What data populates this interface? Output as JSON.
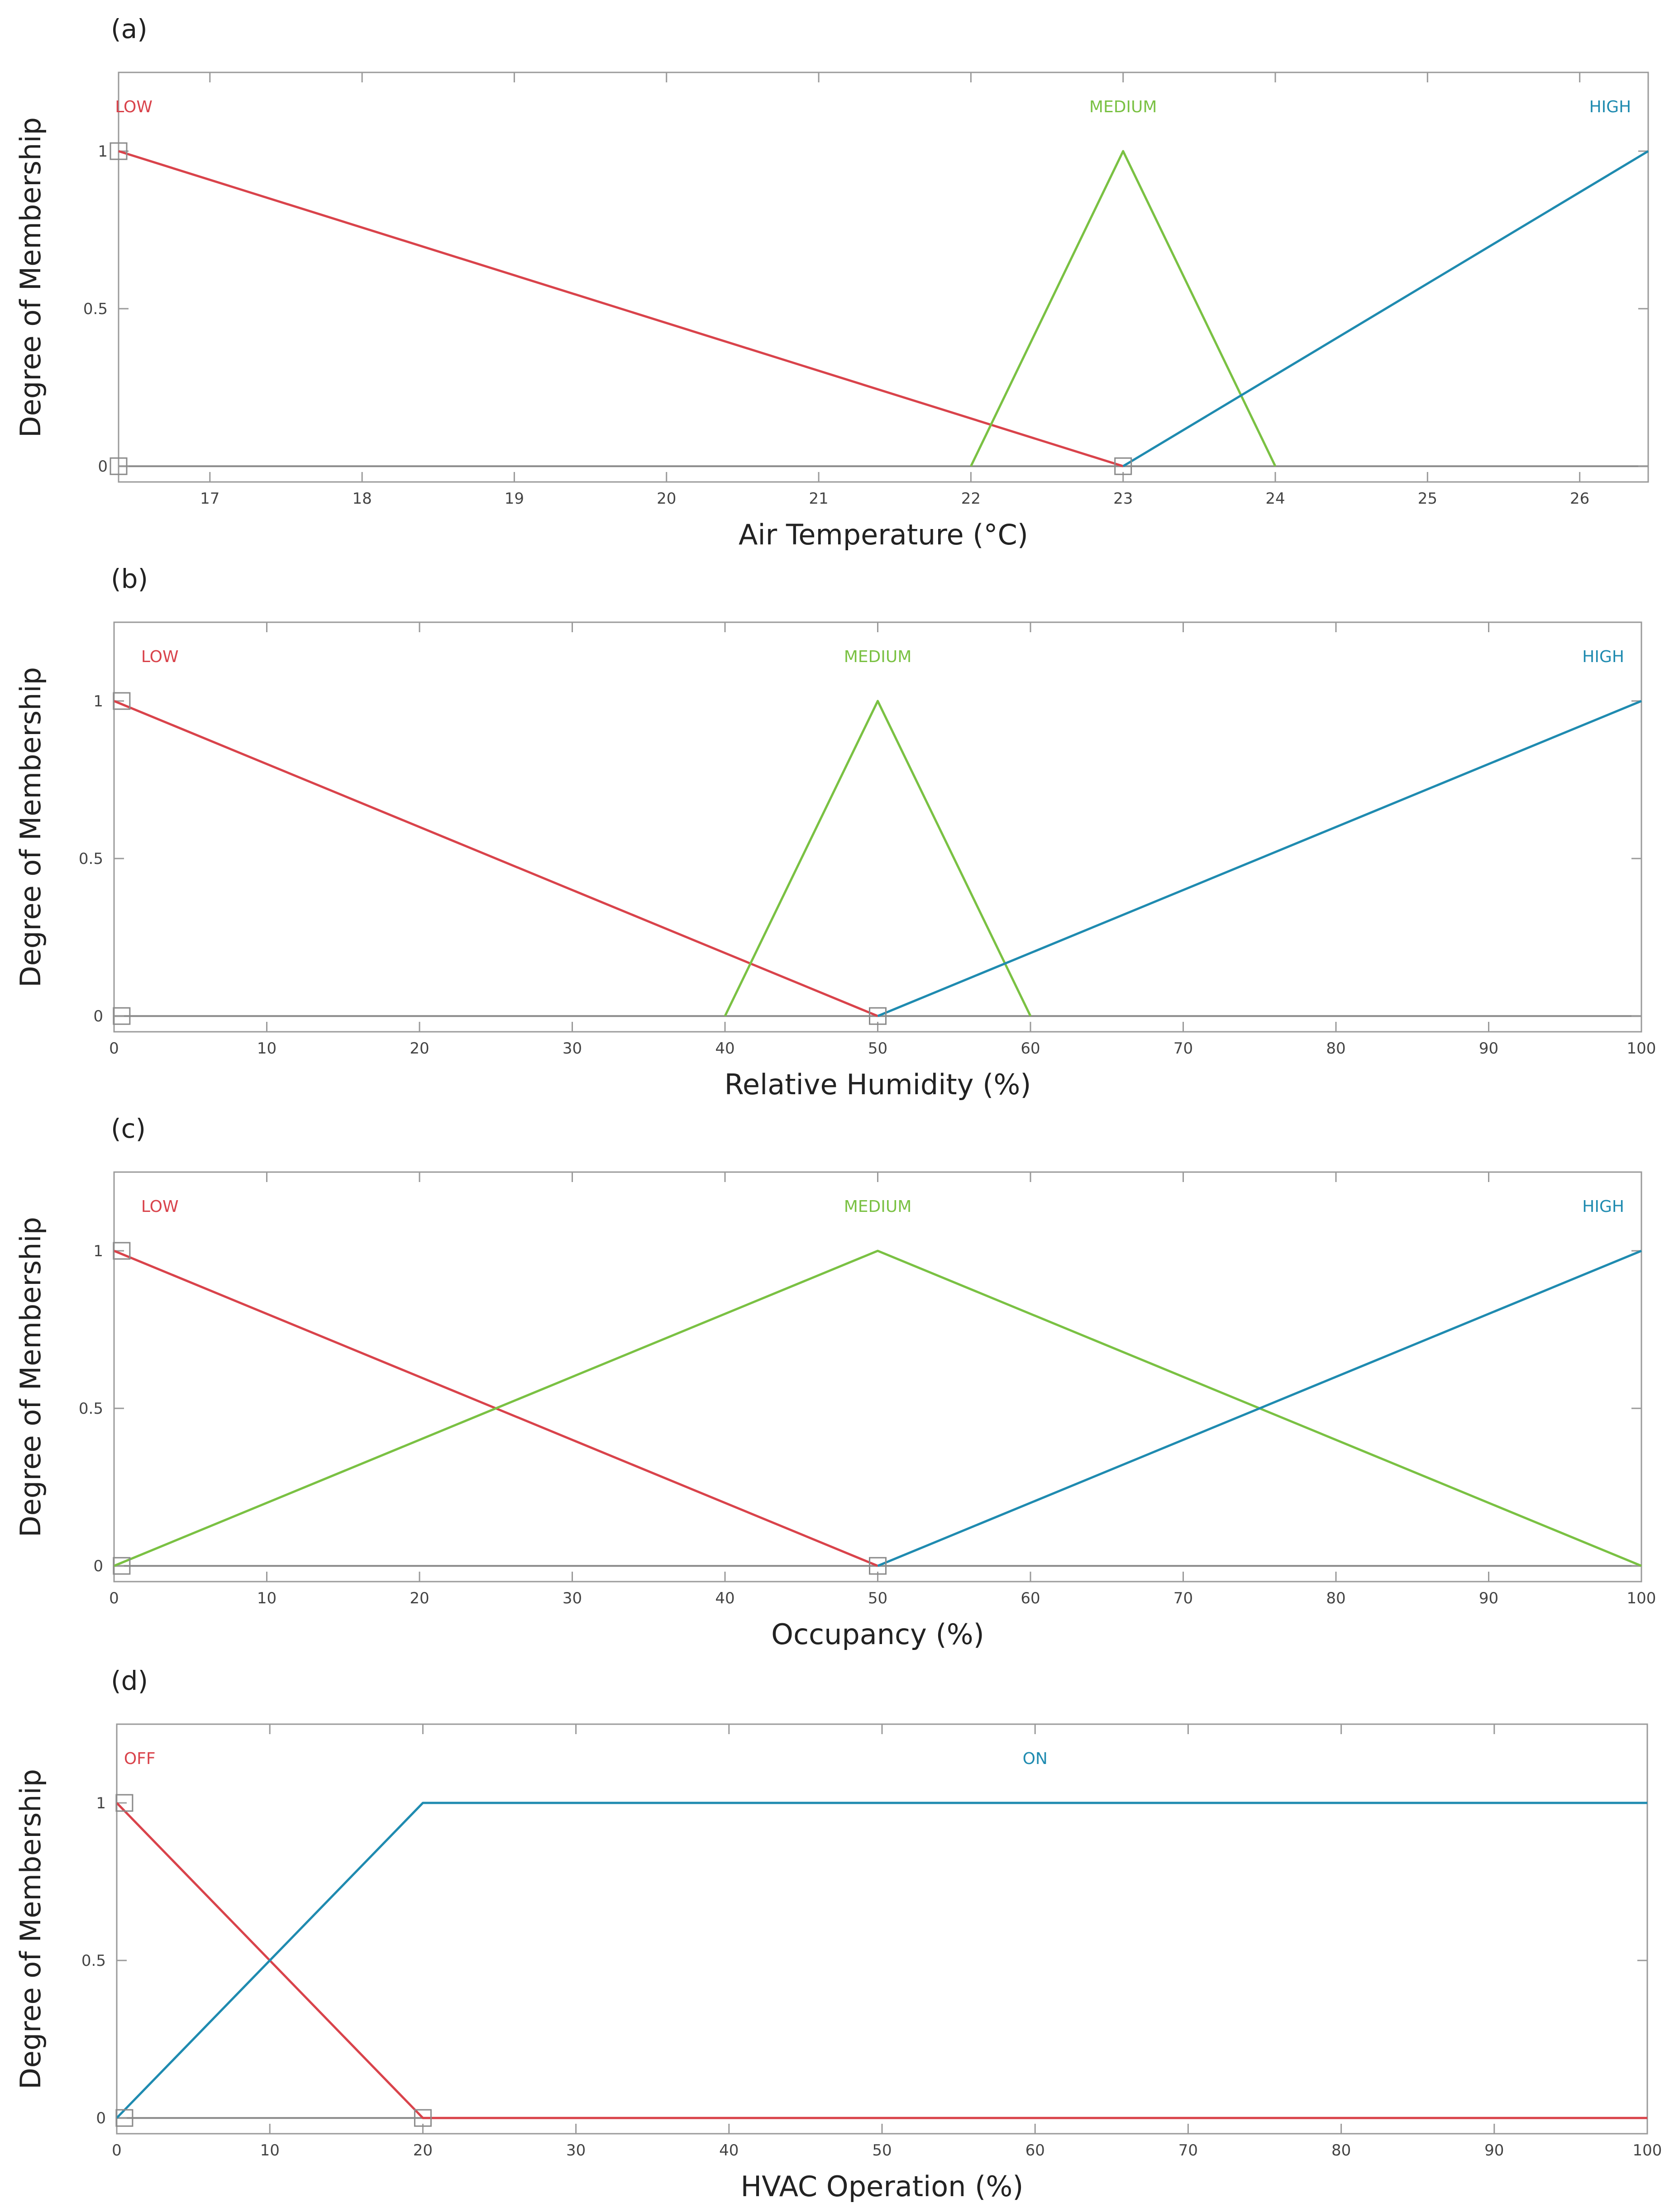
{
  "chart_data": [
    {
      "type": "line",
      "panel_label": "(a)",
      "xlabel": "Air Temperature (°C)",
      "ylabel": "Degree of Membership",
      "xlim": [
        16.4,
        26.45
      ],
      "ylim": [
        -0.05,
        1.25
      ],
      "xticks": [
        17,
        18,
        19,
        20,
        21,
        22,
        23,
        24,
        25,
        26
      ],
      "yticks": [
        0,
        0.5,
        1
      ],
      "ytick_labels": [
        "0",
        "0.5",
        "1"
      ],
      "grid": false,
      "series": [
        {
          "name": "LOW",
          "color": "#d9434b",
          "x": [
            16.4,
            23
          ],
          "y": [
            1,
            0
          ],
          "label_x": 16.5
        },
        {
          "name": "MEDIUM",
          "color": "#7ac143",
          "x": [
            22,
            23,
            24
          ],
          "y": [
            0,
            1,
            0
          ],
          "label_x": 23
        },
        {
          "name": "HIGH",
          "color": "#1f8bb0",
          "x": [
            23,
            26.45
          ],
          "y": [
            0,
            1
          ],
          "label_x": 26.2
        }
      ],
      "markers": [
        {
          "x": 16.4,
          "y": 1
        },
        {
          "x": 16.4,
          "y": 0
        },
        {
          "x": 23,
          "y": 0
        }
      ]
    },
    {
      "type": "line",
      "panel_label": "(b)",
      "xlabel": "Relative Humidity (%)",
      "ylabel": "Degree of Membership",
      "xlim": [
        0,
        100
      ],
      "ylim": [
        -0.05,
        1.25
      ],
      "xticks": [
        0,
        10,
        20,
        30,
        40,
        50,
        60,
        70,
        80,
        90,
        100
      ],
      "yticks": [
        0,
        0.5,
        1
      ],
      "ytick_labels": [
        "0",
        "0.5",
        "1"
      ],
      "grid": false,
      "series": [
        {
          "name": "LOW",
          "color": "#d9434b",
          "x": [
            0,
            50
          ],
          "y": [
            1,
            0
          ],
          "label_x": 3
        },
        {
          "name": "MEDIUM",
          "color": "#7ac143",
          "x": [
            40,
            50,
            60
          ],
          "y": [
            0,
            1,
            0
          ],
          "label_x": 50
        },
        {
          "name": "HIGH",
          "color": "#1f8bb0",
          "x": [
            50,
            100
          ],
          "y": [
            0,
            1
          ],
          "label_x": 97.5
        }
      ],
      "markers": [
        {
          "x": 0.5,
          "y": 1
        },
        {
          "x": 0.5,
          "y": 0
        },
        {
          "x": 50,
          "y": 0
        }
      ]
    },
    {
      "type": "line",
      "panel_label": "(c)",
      "xlabel": "Occupancy (%)",
      "ylabel": "Degree of Membership",
      "xlim": [
        0,
        100
      ],
      "ylim": [
        -0.05,
        1.25
      ],
      "xticks": [
        0,
        10,
        20,
        30,
        40,
        50,
        60,
        70,
        80,
        90,
        100
      ],
      "yticks": [
        0,
        0.5,
        1
      ],
      "ytick_labels": [
        "0",
        "0.5",
        "1"
      ],
      "grid": false,
      "series": [
        {
          "name": "LOW",
          "color": "#d9434b",
          "x": [
            0,
            50
          ],
          "y": [
            1,
            0
          ],
          "label_x": 3
        },
        {
          "name": "MEDIUM",
          "color": "#7ac143",
          "x": [
            0,
            50,
            100
          ],
          "y": [
            0,
            1,
            0
          ],
          "label_x": 50
        },
        {
          "name": "HIGH",
          "color": "#1f8bb0",
          "x": [
            50,
            100
          ],
          "y": [
            0,
            1
          ],
          "label_x": 97.5
        }
      ],
      "markers": [
        {
          "x": 0.5,
          "y": 1
        },
        {
          "x": 0.5,
          "y": 0
        },
        {
          "x": 50,
          "y": 0
        }
      ]
    },
    {
      "type": "line",
      "panel_label": "(d)",
      "xlabel": "HVAC Operation (%)",
      "ylabel": "Degree of Membership",
      "xlim": [
        0,
        100
      ],
      "ylim": [
        -0.05,
        1.25
      ],
      "xticks": [
        0,
        10,
        20,
        30,
        40,
        50,
        60,
        70,
        80,
        90,
        100
      ],
      "yticks": [
        0,
        0.5,
        1
      ],
      "ytick_labels": [
        "0",
        "0.5",
        "1"
      ],
      "grid": false,
      "series": [
        {
          "name": "OFF",
          "color": "#d9434b",
          "x": [
            0,
            20,
            100
          ],
          "y": [
            1,
            0,
            0
          ],
          "label_x": 1.5
        },
        {
          "name": "ON",
          "color": "#1f8bb0",
          "x": [
            0,
            20,
            100
          ],
          "y": [
            0,
            1,
            1
          ],
          "label_x": 60
        }
      ],
      "markers": [
        {
          "x": 0.5,
          "y": 1
        },
        {
          "x": 0.5,
          "y": 0
        },
        {
          "x": 20,
          "y": 0
        }
      ]
    }
  ]
}
